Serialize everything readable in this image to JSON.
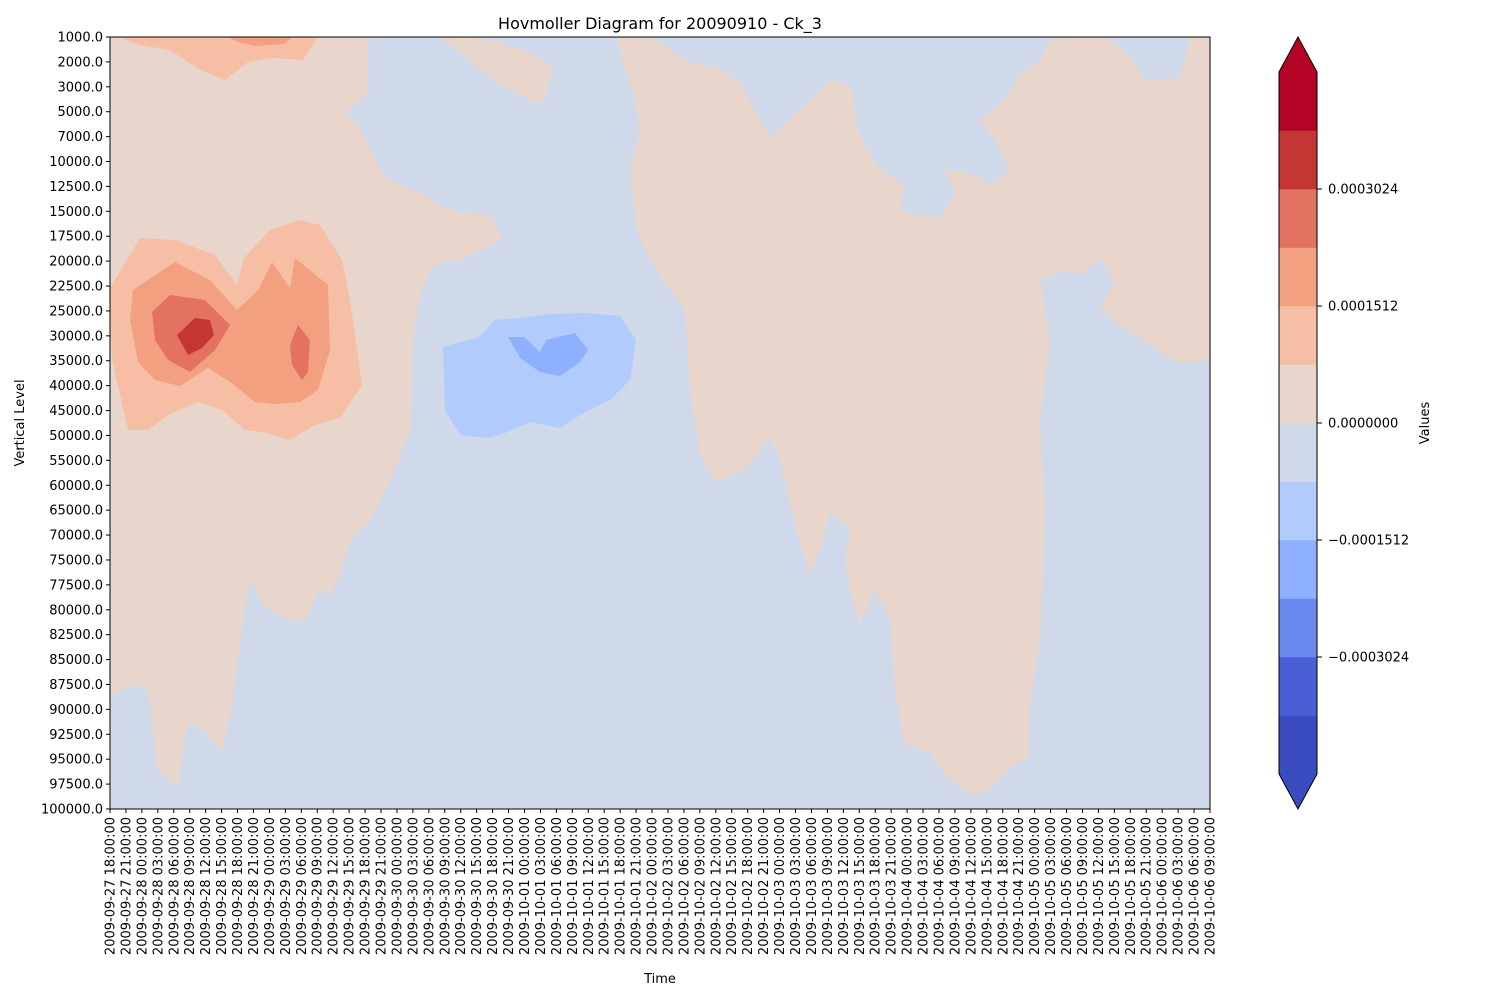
{
  "chart_data": {
    "type": "heatmap",
    "subtype": "filled-contour",
    "title": "Hovmoller Diagram for 20090910 - Ck_3",
    "xlabel": "Time",
    "ylabel": "Vertical Level",
    "x": [
      "2009-09-27 18:00:00",
      "2009-09-27 21:00:00",
      "2009-09-28 00:00:00",
      "2009-09-28 03:00:00",
      "2009-09-28 06:00:00",
      "2009-09-28 09:00:00",
      "2009-09-28 12:00:00",
      "2009-09-28 15:00:00",
      "2009-09-28 18:00:00",
      "2009-09-28 21:00:00",
      "2009-09-29 00:00:00",
      "2009-09-29 03:00:00",
      "2009-09-29 06:00:00",
      "2009-09-29 09:00:00",
      "2009-09-29 12:00:00",
      "2009-09-29 15:00:00",
      "2009-09-29 18:00:00",
      "2009-09-29 21:00:00",
      "2009-09-30 00:00:00",
      "2009-09-30 03:00:00",
      "2009-09-30 06:00:00",
      "2009-09-30 09:00:00",
      "2009-09-30 12:00:00",
      "2009-09-30 15:00:00",
      "2009-09-30 18:00:00",
      "2009-09-30 21:00:00",
      "2009-10-01 00:00:00",
      "2009-10-01 03:00:00",
      "2009-10-01 06:00:00",
      "2009-10-01 09:00:00",
      "2009-10-01 12:00:00",
      "2009-10-01 15:00:00",
      "2009-10-01 18:00:00",
      "2009-10-01 21:00:00",
      "2009-10-02 00:00:00",
      "2009-10-02 03:00:00",
      "2009-10-02 06:00:00",
      "2009-10-02 09:00:00",
      "2009-10-02 12:00:00",
      "2009-10-02 15:00:00",
      "2009-10-02 18:00:00",
      "2009-10-02 21:00:00",
      "2009-10-03 00:00:00",
      "2009-10-03 03:00:00",
      "2009-10-03 06:00:00",
      "2009-10-03 09:00:00",
      "2009-10-03 12:00:00",
      "2009-10-03 15:00:00",
      "2009-10-03 18:00:00",
      "2009-10-03 21:00:00",
      "2009-10-04 00:00:00",
      "2009-10-04 03:00:00",
      "2009-10-04 06:00:00",
      "2009-10-04 09:00:00",
      "2009-10-04 12:00:00",
      "2009-10-04 15:00:00",
      "2009-10-04 18:00:00",
      "2009-10-04 21:00:00",
      "2009-10-05 00:00:00",
      "2009-10-05 03:00:00",
      "2009-10-05 06:00:00",
      "2009-10-05 09:00:00",
      "2009-10-05 12:00:00",
      "2009-10-05 15:00:00",
      "2009-10-05 18:00:00",
      "2009-10-05 21:00:00",
      "2009-10-06 00:00:00",
      "2009-10-06 03:00:00",
      "2009-10-06 06:00:00",
      "2009-10-06 09:00:00"
    ],
    "y": [
      "1000.0",
      "2000.0",
      "3000.0",
      "5000.0",
      "7000.0",
      "10000.0",
      "12500.0",
      "15000.0",
      "17500.0",
      "20000.0",
      "22500.0",
      "25000.0",
      "30000.0",
      "35000.0",
      "40000.0",
      "45000.0",
      "50000.0",
      "55000.0",
      "60000.0",
      "65000.0",
      "70000.0",
      "75000.0",
      "77500.0",
      "80000.0",
      "82500.0",
      "85000.0",
      "87500.0",
      "90000.0",
      "92500.0",
      "95000.0",
      "97500.0",
      "100000.0"
    ],
    "y_inverted": true,
    "colorbar": {
      "label": "Values",
      "cmap": "coolwarm",
      "extend": "both",
      "tick_labels": [
        "0.0003024",
        "0.0001512",
        "0.0000000",
        "−0.0001512",
        "−0.0003024"
      ],
      "tick_values": [
        0.0003024,
        0.0001512,
        0.0,
        -0.0001512,
        -0.0003024
      ],
      "levels": [
        -0.0004536,
        -0.000378,
        -0.0003024,
        -0.0002268,
        -0.0001512,
        -7.56e-05,
        0.0,
        7.56e-05,
        0.0001512,
        0.0002268,
        0.0003024,
        0.000378,
        0.0004536
      ],
      "colors": [
        "#3b4cc0",
        "#4a5fd6",
        "#6a89ee",
        "#8fb0fe",
        "#b1cbfc",
        "#cfd9ea",
        "#e8d6cc",
        "#f6bfa5",
        "#f3a081",
        "#e47260",
        "#c43633",
        "#b40426"
      ],
      "under_color": "#3b4cc0",
      "over_color": "#b40426"
    },
    "features": [
      {
        "sign": "positive",
        "x_range": [
          "2009-09-27 18:00:00",
          "2009-09-29 18:00:00"
        ],
        "y_range": [
          "20000.0",
          "50000.0"
        ],
        "peak_value": 0.00034,
        "peak_at": [
          "2009-09-28 09:00:00",
          "30000.0"
        ]
      },
      {
        "sign": "positive",
        "x_range": [
          "2009-09-27 21:00:00",
          "2009-09-29 12:00:00"
        ],
        "y_range": [
          "1000.0",
          "2000.0"
        ],
        "peak_value": 0.00017
      },
      {
        "sign": "negative",
        "x_range": [
          "2009-09-30 12:00:00",
          "2009-10-01 21:00:00"
        ],
        "y_range": [
          "25000.0",
          "50000.0"
        ],
        "peak_value": -0.00016,
        "peak_at": [
          "2009-10-01 06:00:00",
          "35000.0"
        ]
      }
    ]
  }
}
